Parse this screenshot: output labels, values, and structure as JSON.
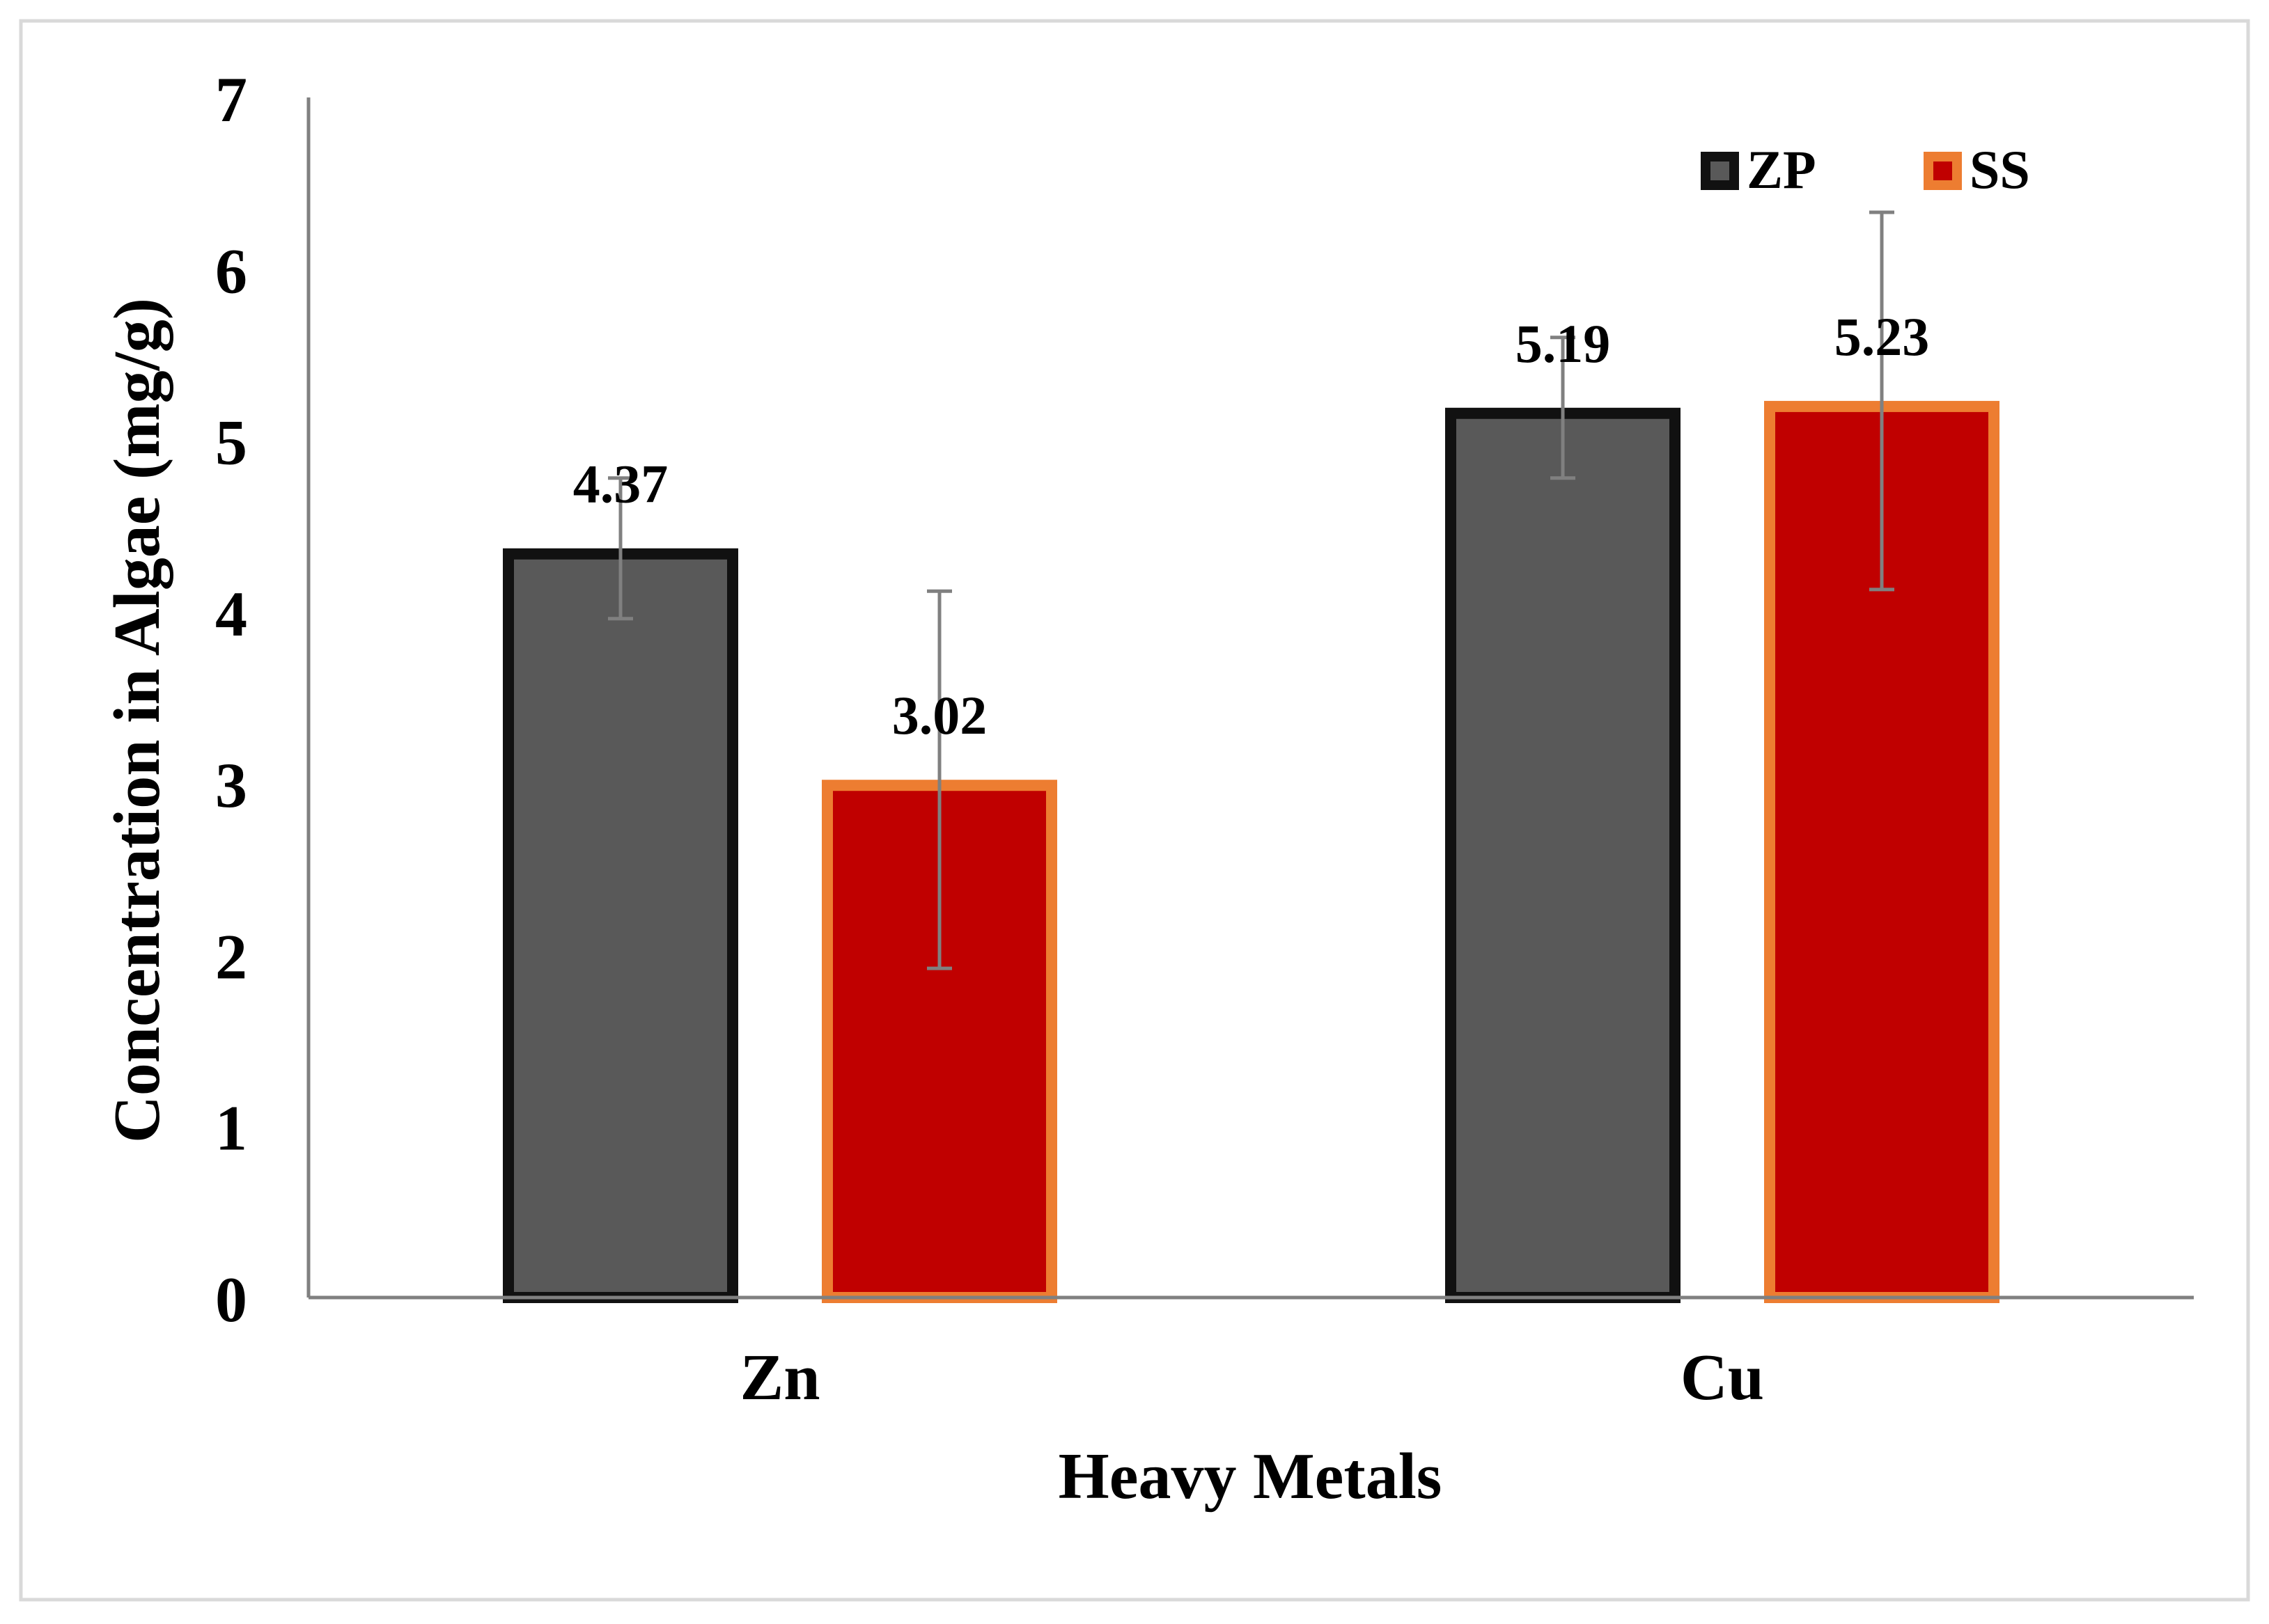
{
  "chart_data": {
    "type": "bar",
    "categories": [
      "Zn",
      "Cu"
    ],
    "series": [
      {
        "name": "ZP",
        "values": [
          4.37,
          5.19
        ],
        "error": [
          0.41,
          0.41
        ],
        "data_labels": [
          "4.37",
          "5.19"
        ],
        "fill": "#595959",
        "stroke": "#111111"
      },
      {
        "name": "SS",
        "values": [
          3.02,
          5.23
        ],
        "error": [
          1.1,
          1.1
        ],
        "data_labels": [
          "3.02",
          "5.23"
        ],
        "fill": "#c00000",
        "stroke": "#ed7d31"
      }
    ],
    "xlabel": "Heavy Metals",
    "ylabel": "Concentration  in Algae (mg/g)",
    "ylim": [
      0,
      7
    ],
    "yticks": [
      "0",
      "1",
      "2",
      "3",
      "4",
      "5",
      "6",
      "7"
    ],
    "grid": false,
    "legend_position": "top-right",
    "colors": {
      "axis": "#808080",
      "error_bar": "#808080",
      "frame": "#d9d9d9"
    }
  }
}
